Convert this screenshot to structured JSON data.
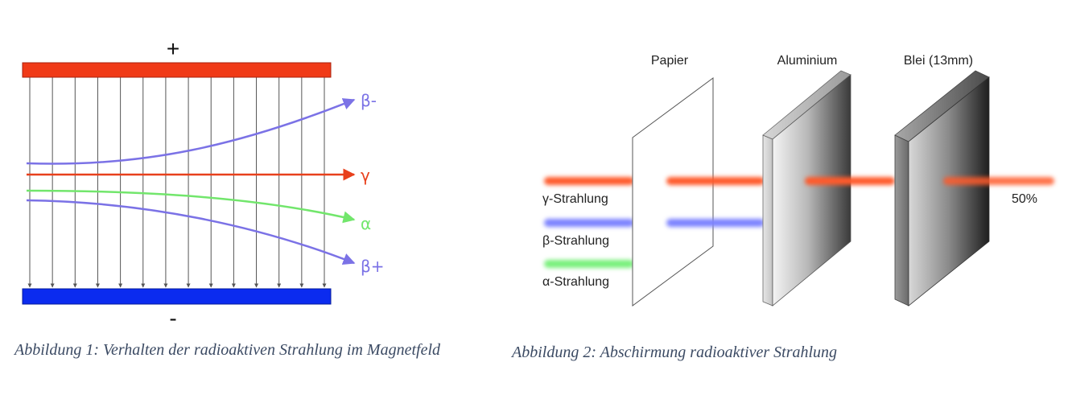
{
  "figure1": {
    "plus_sign": "+",
    "minus_sign": "-",
    "labels": {
      "beta_minus": "β-",
      "gamma": "γ",
      "alpha": "α",
      "beta_plus": "β+"
    },
    "colors": {
      "positive_plate": "#f03a17",
      "negative_plate": "#0b2bef",
      "field_lines": "#555555",
      "beta": "#7b72e6",
      "gamma": "#e8401c",
      "alpha": "#72e66c"
    },
    "caption": "Abbildung 1: Verhalten der radioaktiven Strahlung im Magnetfeld"
  },
  "figure2": {
    "materials": {
      "paper": "Papier",
      "aluminium": "Aluminium",
      "lead": "Blei (13mm)"
    },
    "radiation_labels": {
      "gamma": "γ-Strahlung",
      "beta": "β-Strahlung",
      "alpha": "α-Strahlung"
    },
    "remaining_fraction": "50%",
    "colors": {
      "gamma": "#ff5a2a",
      "beta": "#7c82ff",
      "alpha": "#78f07a"
    },
    "caption": "Abbildung 2: Abschirmung radioaktiver Strahlung"
  }
}
